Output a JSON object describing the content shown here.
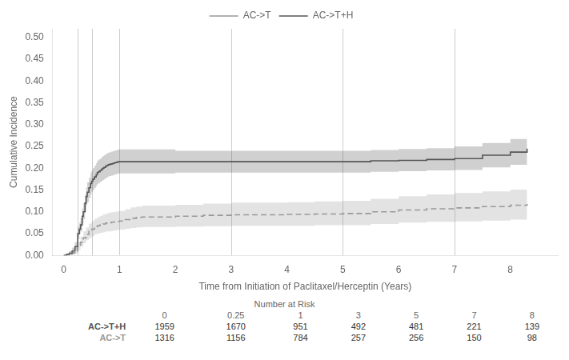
{
  "chart_data": {
    "type": "step",
    "xlabel": "Time from Initiation of Paclitaxel/Herceptin (Years)",
    "ylabel": "Cumulative Incidence",
    "xlim": [
      -0.2,
      8.85
    ],
    "ylim": [
      0.0,
      0.52
    ],
    "xticks": [
      0,
      1,
      2,
      3,
      4,
      5,
      6,
      7,
      8
    ],
    "yticks": [
      {
        "value": 0.0,
        "label": "0.00"
      },
      0.05,
      {
        "value": 0.1,
        "label": "0.10"
      },
      0.15,
      {
        "value": 0.2,
        "label": "0.20"
      },
      0.25,
      {
        "value": 0.3,
        "label": "0.30"
      },
      0.35,
      {
        "value": 0.4,
        "label": "0.40"
      },
      0.45,
      {
        "value": 0.5,
        "label": "0.50"
      }
    ],
    "grid": false,
    "legend": "top",
    "vlines": [
      0.25,
      0.5,
      1.0,
      3.0,
      5.0,
      7.0
    ],
    "at_risk_title": "Number at Risk",
    "at_risk_times": [
      0,
      0.25,
      1,
      3,
      5,
      7,
      8
    ],
    "series": [
      {
        "name": "AC->T+H",
        "color": "#555555",
        "line_style": "solid",
        "x": [
          0.0,
          0.05,
          0.1,
          0.15,
          0.2,
          0.25,
          0.28,
          0.3,
          0.33,
          0.35,
          0.38,
          0.4,
          0.42,
          0.45,
          0.48,
          0.5,
          0.52,
          0.55,
          0.58,
          0.6,
          0.62,
          0.65,
          0.68,
          0.7,
          0.72,
          0.75,
          0.78,
          0.8,
          0.82,
          0.85,
          0.88,
          0.9,
          0.92,
          0.95,
          0.98,
          1.0,
          1.05,
          1.1,
          1.2,
          1.3,
          1.4,
          1.5,
          2.0,
          2.5,
          3.0,
          3.5,
          4.0,
          4.5,
          5.0,
          5.5,
          6.0,
          6.5,
          7.0,
          7.5,
          8.0,
          8.3
        ],
        "values": [
          0.0,
          0.002,
          0.005,
          0.01,
          0.02,
          0.05,
          0.06,
          0.07,
          0.09,
          0.1,
          0.12,
          0.135,
          0.145,
          0.155,
          0.165,
          0.17,
          0.175,
          0.18,
          0.185,
          0.19,
          0.192,
          0.195,
          0.198,
          0.2,
          0.202,
          0.205,
          0.207,
          0.208,
          0.209,
          0.21,
          0.211,
          0.212,
          0.213,
          0.214,
          0.215,
          0.215,
          0.215,
          0.215,
          0.215,
          0.215,
          0.215,
          0.215,
          0.215,
          0.215,
          0.215,
          0.215,
          0.215,
          0.215,
          0.215,
          0.217,
          0.218,
          0.22,
          0.222,
          0.23,
          0.237,
          0.245
        ],
        "low": [
          0.0,
          0.001,
          0.002,
          0.005,
          0.012,
          0.038,
          0.048,
          0.055,
          0.073,
          0.083,
          0.1,
          0.114,
          0.122,
          0.132,
          0.141,
          0.146,
          0.15,
          0.155,
          0.16,
          0.164,
          0.166,
          0.169,
          0.171,
          0.173,
          0.175,
          0.178,
          0.18,
          0.181,
          0.182,
          0.183,
          0.184,
          0.185,
          0.186,
          0.187,
          0.188,
          0.188,
          0.188,
          0.188,
          0.188,
          0.188,
          0.188,
          0.188,
          0.19,
          0.19,
          0.19,
          0.19,
          0.19,
          0.19,
          0.19,
          0.192,
          0.193,
          0.195,
          0.196,
          0.202,
          0.208,
          0.215
        ],
        "high": [
          0.0,
          0.005,
          0.01,
          0.018,
          0.03,
          0.065,
          0.075,
          0.085,
          0.108,
          0.12,
          0.14,
          0.156,
          0.168,
          0.178,
          0.19,
          0.195,
          0.2,
          0.206,
          0.212,
          0.217,
          0.22,
          0.222,
          0.226,
          0.228,
          0.23,
          0.233,
          0.235,
          0.236,
          0.237,
          0.238,
          0.239,
          0.24,
          0.241,
          0.242,
          0.243,
          0.243,
          0.243,
          0.243,
          0.243,
          0.243,
          0.243,
          0.243,
          0.24,
          0.24,
          0.24,
          0.24,
          0.24,
          0.24,
          0.24,
          0.242,
          0.244,
          0.246,
          0.25,
          0.258,
          0.267,
          0.277
        ],
        "at_risk": [
          1959,
          1670,
          951,
          492,
          481,
          221,
          139
        ]
      },
      {
        "name": "AC->T",
        "color": "#999999",
        "line_style": "dashed",
        "x": [
          0.0,
          0.05,
          0.1,
          0.15,
          0.2,
          0.25,
          0.3,
          0.35,
          0.4,
          0.45,
          0.5,
          0.55,
          0.6,
          0.65,
          0.7,
          0.75,
          0.8,
          0.85,
          0.9,
          0.95,
          1.0,
          1.1,
          1.2,
          1.3,
          1.4,
          1.5,
          2.0,
          2.5,
          3.0,
          3.5,
          4.0,
          4.5,
          5.0,
          5.5,
          6.0,
          6.5,
          7.0,
          7.5,
          8.0,
          8.3
        ],
        "values": [
          0.0,
          0.001,
          0.003,
          0.005,
          0.01,
          0.02,
          0.03,
          0.04,
          0.048,
          0.055,
          0.06,
          0.065,
          0.068,
          0.07,
          0.072,
          0.074,
          0.075,
          0.076,
          0.077,
          0.078,
          0.079,
          0.082,
          0.085,
          0.087,
          0.088,
          0.088,
          0.09,
          0.092,
          0.093,
          0.093,
          0.094,
          0.095,
          0.096,
          0.1,
          0.104,
          0.107,
          0.109,
          0.112,
          0.115,
          0.118
        ],
        "low": [
          0.0,
          0.0,
          0.001,
          0.002,
          0.005,
          0.012,
          0.02,
          0.028,
          0.035,
          0.04,
          0.044,
          0.048,
          0.05,
          0.052,
          0.053,
          0.055,
          0.055,
          0.056,
          0.057,
          0.058,
          0.059,
          0.061,
          0.063,
          0.064,
          0.065,
          0.065,
          0.066,
          0.067,
          0.068,
          0.068,
          0.068,
          0.069,
          0.069,
          0.072,
          0.075,
          0.077,
          0.078,
          0.08,
          0.082,
          0.084
        ],
        "high": [
          0.0,
          0.004,
          0.008,
          0.012,
          0.018,
          0.03,
          0.043,
          0.055,
          0.064,
          0.073,
          0.079,
          0.084,
          0.088,
          0.091,
          0.094,
          0.096,
          0.098,
          0.099,
          0.1,
          0.101,
          0.102,
          0.106,
          0.11,
          0.112,
          0.114,
          0.114,
          0.116,
          0.119,
          0.121,
          0.121,
          0.122,
          0.124,
          0.125,
          0.13,
          0.136,
          0.14,
          0.143,
          0.147,
          0.151,
          0.155
        ],
        "at_risk": [
          1316,
          1156,
          784,
          257,
          256,
          150,
          98
        ]
      }
    ]
  }
}
